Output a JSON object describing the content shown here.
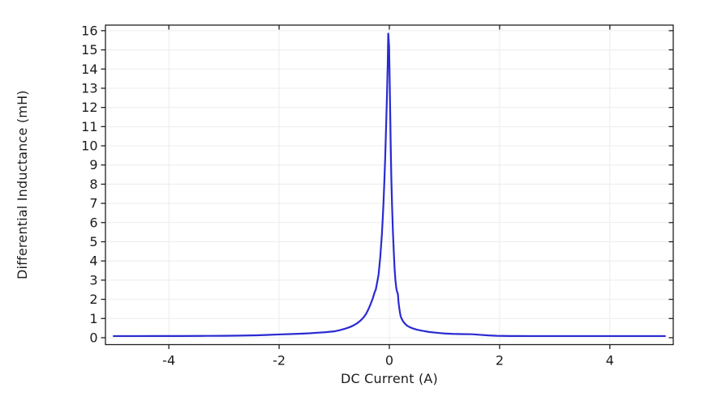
{
  "page": {
    "background_color": "#ffffff"
  },
  "styles": {
    "line_color": "#2a2ad2",
    "grid_color": "#ececec",
    "axis_color": "#1f1f1f",
    "text_color": "#1c1c1c"
  },
  "chart_data": {
    "type": "line",
    "title": "",
    "xlabel": "DC Current (A)",
    "ylabel": "Differential Inductance (mH)",
    "xlim": [
      -5.15,
      5.15
    ],
    "ylim": [
      -0.36,
      16.29
    ],
    "x_ticks": [
      -4,
      -2,
      0,
      2,
      4
    ],
    "y_ticks": [
      0,
      1,
      2,
      3,
      4,
      5,
      6,
      7,
      8,
      9,
      10,
      11,
      12,
      13,
      14,
      15,
      16
    ],
    "grid": true,
    "legend": false,
    "series": [
      {
        "name": "Differential inductance",
        "color": "#2a2ad2",
        "points": [
          [
            -5.0,
            0.085
          ],
          [
            -4.6,
            0.085
          ],
          [
            -4.2,
            0.088
          ],
          [
            -3.8,
            0.09
          ],
          [
            -3.4,
            0.095
          ],
          [
            -3.0,
            0.1
          ],
          [
            -2.7,
            0.11
          ],
          [
            -2.4,
            0.125
          ],
          [
            -2.2,
            0.145
          ],
          [
            -2.0,
            0.17
          ],
          [
            -1.8,
            0.19
          ],
          [
            -1.6,
            0.21
          ],
          [
            -1.45,
            0.23
          ],
          [
            -1.3,
            0.26
          ],
          [
            -1.15,
            0.29
          ],
          [
            -1.0,
            0.33
          ],
          [
            -0.9,
            0.39
          ],
          [
            -0.8,
            0.47
          ],
          [
            -0.72,
            0.55
          ],
          [
            -0.65,
            0.64
          ],
          [
            -0.58,
            0.76
          ],
          [
            -0.52,
            0.9
          ],
          [
            -0.47,
            1.05
          ],
          [
            -0.42,
            1.25
          ],
          [
            -0.38,
            1.48
          ],
          [
            -0.34,
            1.75
          ],
          [
            -0.3,
            2.05
          ],
          [
            -0.28,
            2.25
          ],
          [
            -0.26,
            2.42
          ],
          [
            -0.245,
            2.52
          ],
          [
            -0.23,
            2.75
          ],
          [
            -0.21,
            3.05
          ],
          [
            -0.195,
            3.3
          ],
          [
            -0.18,
            3.75
          ],
          [
            -0.165,
            4.2
          ],
          [
            -0.15,
            4.8
          ],
          [
            -0.135,
            5.4
          ],
          [
            -0.12,
            6.2
          ],
          [
            -0.105,
            7.1
          ],
          [
            -0.09,
            8.2
          ],
          [
            -0.075,
            9.4
          ],
          [
            -0.06,
            10.9
          ],
          [
            -0.045,
            12.4
          ],
          [
            -0.03,
            14.2
          ],
          [
            -0.02,
            15.85
          ],
          [
            -0.005,
            15.2
          ],
          [
            0.005,
            13.6
          ],
          [
            0.015,
            11.8
          ],
          [
            0.025,
            10.0
          ],
          [
            0.035,
            8.4
          ],
          [
            0.05,
            6.8
          ],
          [
            0.065,
            5.5
          ],
          [
            0.08,
            4.5
          ],
          [
            0.095,
            3.6
          ],
          [
            0.11,
            3.0
          ],
          [
            0.125,
            2.6
          ],
          [
            0.14,
            2.4
          ],
          [
            0.155,
            2.28
          ],
          [
            0.165,
            1.9
          ],
          [
            0.175,
            1.65
          ],
          [
            0.19,
            1.35
          ],
          [
            0.205,
            1.12
          ],
          [
            0.225,
            0.98
          ],
          [
            0.25,
            0.85
          ],
          [
            0.28,
            0.74
          ],
          [
            0.32,
            0.63
          ],
          [
            0.37,
            0.55
          ],
          [
            0.43,
            0.48
          ],
          [
            0.5,
            0.42
          ],
          [
            0.6,
            0.36
          ],
          [
            0.72,
            0.3
          ],
          [
            0.85,
            0.26
          ],
          [
            1.0,
            0.22
          ],
          [
            1.15,
            0.2
          ],
          [
            1.3,
            0.19
          ],
          [
            1.5,
            0.18
          ],
          [
            1.65,
            0.15
          ],
          [
            1.8,
            0.12
          ],
          [
            1.95,
            0.1
          ],
          [
            2.2,
            0.09
          ],
          [
            2.6,
            0.085
          ],
          [
            3.0,
            0.085
          ],
          [
            3.5,
            0.085
          ],
          [
            4.0,
            0.085
          ],
          [
            4.5,
            0.085
          ],
          [
            5.0,
            0.085
          ]
        ]
      }
    ]
  }
}
